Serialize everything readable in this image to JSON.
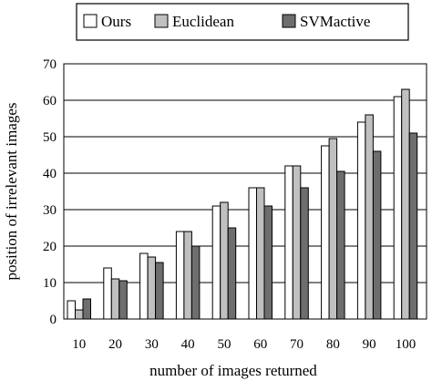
{
  "chart_data": {
    "type": "bar",
    "title": "",
    "xlabel": "number of images returned",
    "ylabel": "position of irrelevant images",
    "categories": [
      "10",
      "20",
      "30",
      "40",
      "50",
      "60",
      "70",
      "80",
      "90",
      "100"
    ],
    "series": [
      {
        "name": "Ours",
        "color": "#ffffff",
        "values": [
          5,
          14,
          18,
          24,
          31,
          36,
          42,
          47.5,
          54,
          61
        ]
      },
      {
        "name": "Euclidean",
        "color": "#c0c0c0",
        "values": [
          2.5,
          11,
          17,
          24,
          32,
          36,
          42,
          49.5,
          56,
          63
        ]
      },
      {
        "name": "SVMactive",
        "color": "#6e6e6e",
        "values": [
          5.5,
          10.5,
          15.5,
          20,
          25,
          31,
          36,
          40.5,
          46,
          51
        ]
      }
    ],
    "ylim": [
      0,
      70
    ],
    "yticks": [
      0,
      10,
      20,
      30,
      40,
      50,
      60,
      70
    ],
    "grid": true,
    "legend_position": "top"
  }
}
